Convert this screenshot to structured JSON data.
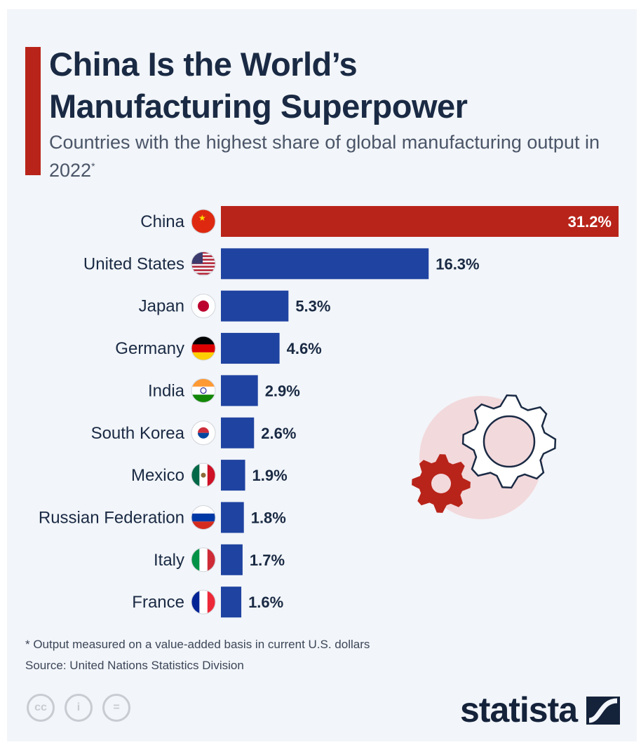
{
  "header": {
    "title_line1": "China Is the World’s",
    "title_line2": "Manufacturing Superpower",
    "subtitle": "Countries with the highest share of global manufacturing output in 2022",
    "subtitle_mark": "*"
  },
  "chart_data": {
    "type": "bar",
    "orientation": "horizontal",
    "categories": [
      "China",
      "United States",
      "Japan",
      "Germany",
      "India",
      "South Korea",
      "Mexico",
      "Russian Federation",
      "Italy",
      "France"
    ],
    "values": [
      31.2,
      16.3,
      5.3,
      4.6,
      2.9,
      2.6,
      1.9,
      1.8,
      1.7,
      1.6
    ],
    "value_labels": [
      "31.2%",
      "16.3%",
      "5.3%",
      "4.6%",
      "2.9%",
      "2.6%",
      "1.9%",
      "1.8%",
      "1.7%",
      "1.6%"
    ],
    "unit": "%",
    "colors": {
      "highlight": "#b8241a",
      "default": "#1f43a0"
    },
    "highlight_category": "China",
    "grid": false
  },
  "footer": {
    "footnote": "* Output measured on a value-added basis in current U.S. dollars",
    "source": "Source: United Nations Statistics Division",
    "license_icons": [
      "cc",
      "i",
      "="
    ],
    "brand": "statista"
  }
}
